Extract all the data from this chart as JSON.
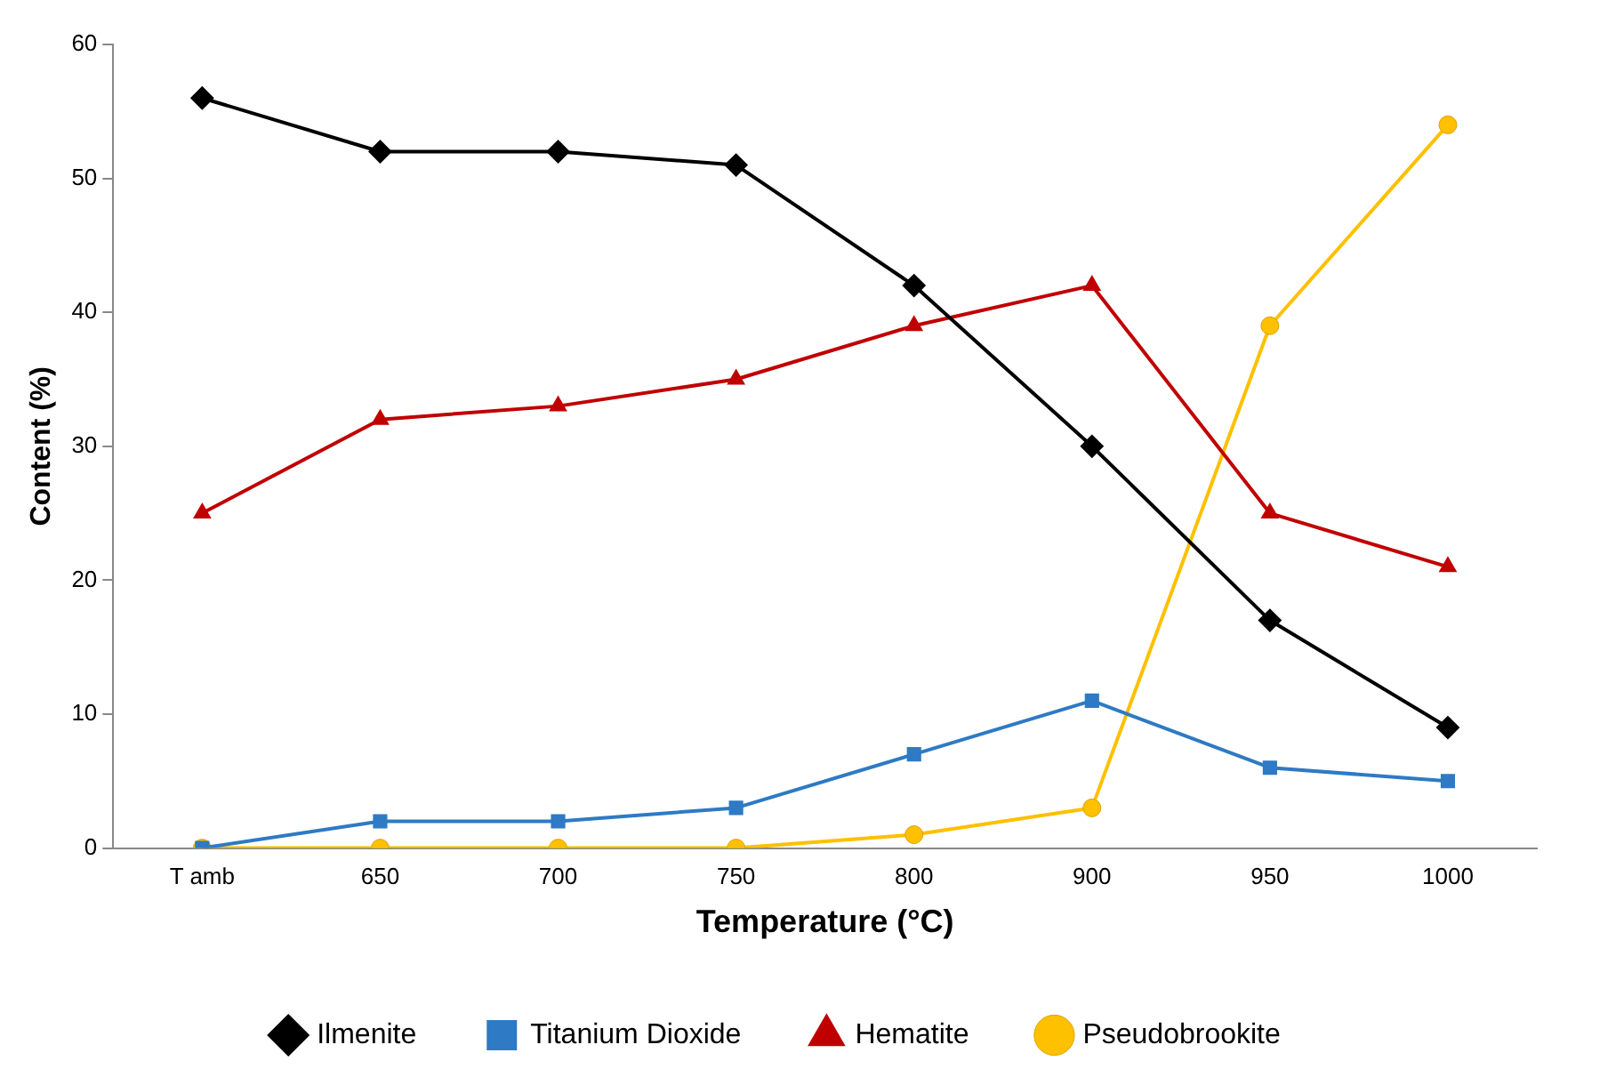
{
  "chart_data": {
    "type": "line",
    "xlabel": "Temperature (°C)",
    "ylabel": "Content (%)",
    "categories": [
      "T amb",
      "650",
      "700",
      "750",
      "800",
      "900",
      "950",
      "1000"
    ],
    "series": [
      {
        "name": "Ilmenite",
        "color": "#000000",
        "marker": "diamond",
        "values": [
          56,
          52,
          52,
          51,
          42,
          30,
          17,
          9
        ]
      },
      {
        "name": "Titanium Dioxide",
        "color": "#2e7ac4",
        "marker": "square",
        "values": [
          0,
          2,
          2,
          3,
          7,
          11,
          6,
          5
        ]
      },
      {
        "name": "Hematite",
        "color": "#c00000",
        "marker": "triangle",
        "values": [
          25,
          32,
          33,
          35,
          39,
          42,
          25,
          21
        ]
      },
      {
        "name": "Pseudobrookite",
        "color": "#ffc000",
        "marker": "circle",
        "values": [
          0,
          0,
          0,
          0,
          1,
          3,
          39,
          54
        ]
      }
    ],
    "ylim": [
      0,
      60
    ],
    "yticks": [
      0,
      10,
      20,
      30,
      40,
      50,
      60
    ],
    "grid": false,
    "legend": "bottom",
    "line_style": "solid"
  }
}
